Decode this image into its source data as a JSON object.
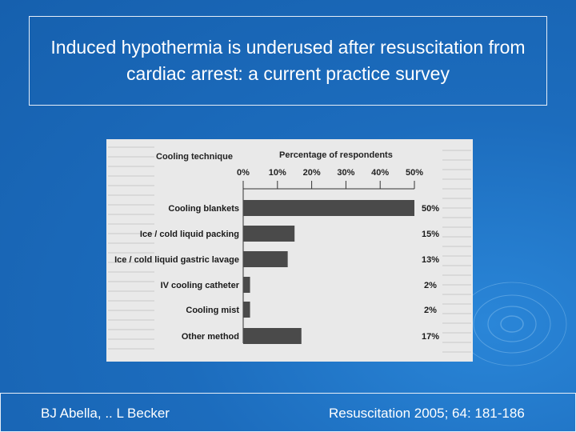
{
  "slide": {
    "title": "Induced hypothermia is underused after resuscitation from cardiac arrest: a current practice survey",
    "footer_left": "BJ Abella, .. L Becker",
    "footer_right": "Resuscitation 2005; 64: 181-186"
  },
  "colors": {
    "background": "#1c6cbd",
    "bar": "#4a4a4a",
    "figure_bg": "#e9e9e9",
    "text_on_bg": "#ffffff"
  },
  "chart_data": {
    "type": "bar",
    "orientation": "horizontal",
    "category_header": "Cooling technique",
    "value_header": "Percentage of respondents",
    "categories": [
      "Cooling blankets",
      "Ice / cold liquid packing",
      "Ice / cold liquid gastric lavage",
      "IV cooling catheter",
      "Cooling mist",
      "Other method"
    ],
    "values": [
      50,
      15,
      13,
      2,
      2,
      17
    ],
    "value_labels": [
      "50%",
      "15%",
      "13%",
      "2%",
      "2%",
      "17%"
    ],
    "xticks": [
      "0%",
      "10%",
      "20%",
      "30%",
      "40%",
      "50%"
    ],
    "xlim": [
      0,
      50
    ]
  }
}
